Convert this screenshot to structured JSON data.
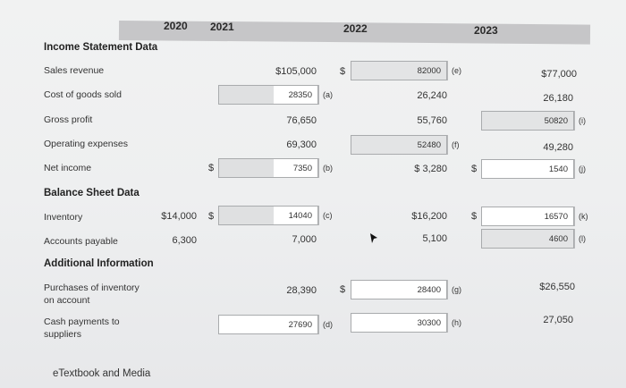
{
  "header": {
    "years": [
      "2020",
      "2021",
      "2022",
      "2023"
    ]
  },
  "sections": {
    "income": "Income Statement Data",
    "balance": "Balance Sheet Data",
    "additional": "Additional Information"
  },
  "rows": {
    "sales": {
      "label": "Sales revenue",
      "y2021": "$105,000",
      "y2022_box": "82000",
      "y2022_tag": "(e)",
      "y2023": "$77,000"
    },
    "cogs": {
      "label": "Cost of goods sold",
      "y2021_box": "28350",
      "y2021_tag": "(a)",
      "y2022": "26,240",
      "y2023": "26,180"
    },
    "gross": {
      "label": "Gross profit",
      "y2021": "76,650",
      "y2022": "55,760",
      "y2023_box": "50820",
      "y2023_tag": "(i)"
    },
    "opex": {
      "label": "Operating expenses",
      "y2021": "69,300",
      "y2022_box": "52480",
      "y2022_tag": "(f)",
      "y2023": "49,280"
    },
    "netincome": {
      "label": "Net income",
      "y2021_box": "7350",
      "y2021_tag": "(b)",
      "y2022": "$ 3,280",
      "y2023_box": "1540",
      "y2023_tag": "(j)"
    },
    "inventory": {
      "label": "Inventory",
      "y2020": "$14,000",
      "y2021_box": "14040",
      "y2021_tag": "(c)",
      "y2022": "$16,200",
      "y2023_box": "16570",
      "y2023_tag": "(k)"
    },
    "payable": {
      "label": "Accounts payable",
      "y2020": "6,300",
      "y2021": "7,000",
      "y2022": "5,100",
      "y2023_box": "4600",
      "y2023_tag": "(l)"
    },
    "purchases": {
      "label_line1": "Purchases of inventory",
      "label_line2": "on account",
      "y2021": "28,390",
      "y2022_box": "28400",
      "y2022_tag": "(g)",
      "y2023": "$26,550"
    },
    "cash": {
      "label_line1": "Cash payments to",
      "label_line2": "suppliers",
      "y2021_box": "27690",
      "y2021_tag": "(d)",
      "y2022_box": "30300",
      "y2022_tag": "(h)",
      "y2023": "27,050"
    }
  },
  "symbols": {
    "dollar": "$"
  },
  "footer": {
    "link": "eTextbook and Media"
  }
}
